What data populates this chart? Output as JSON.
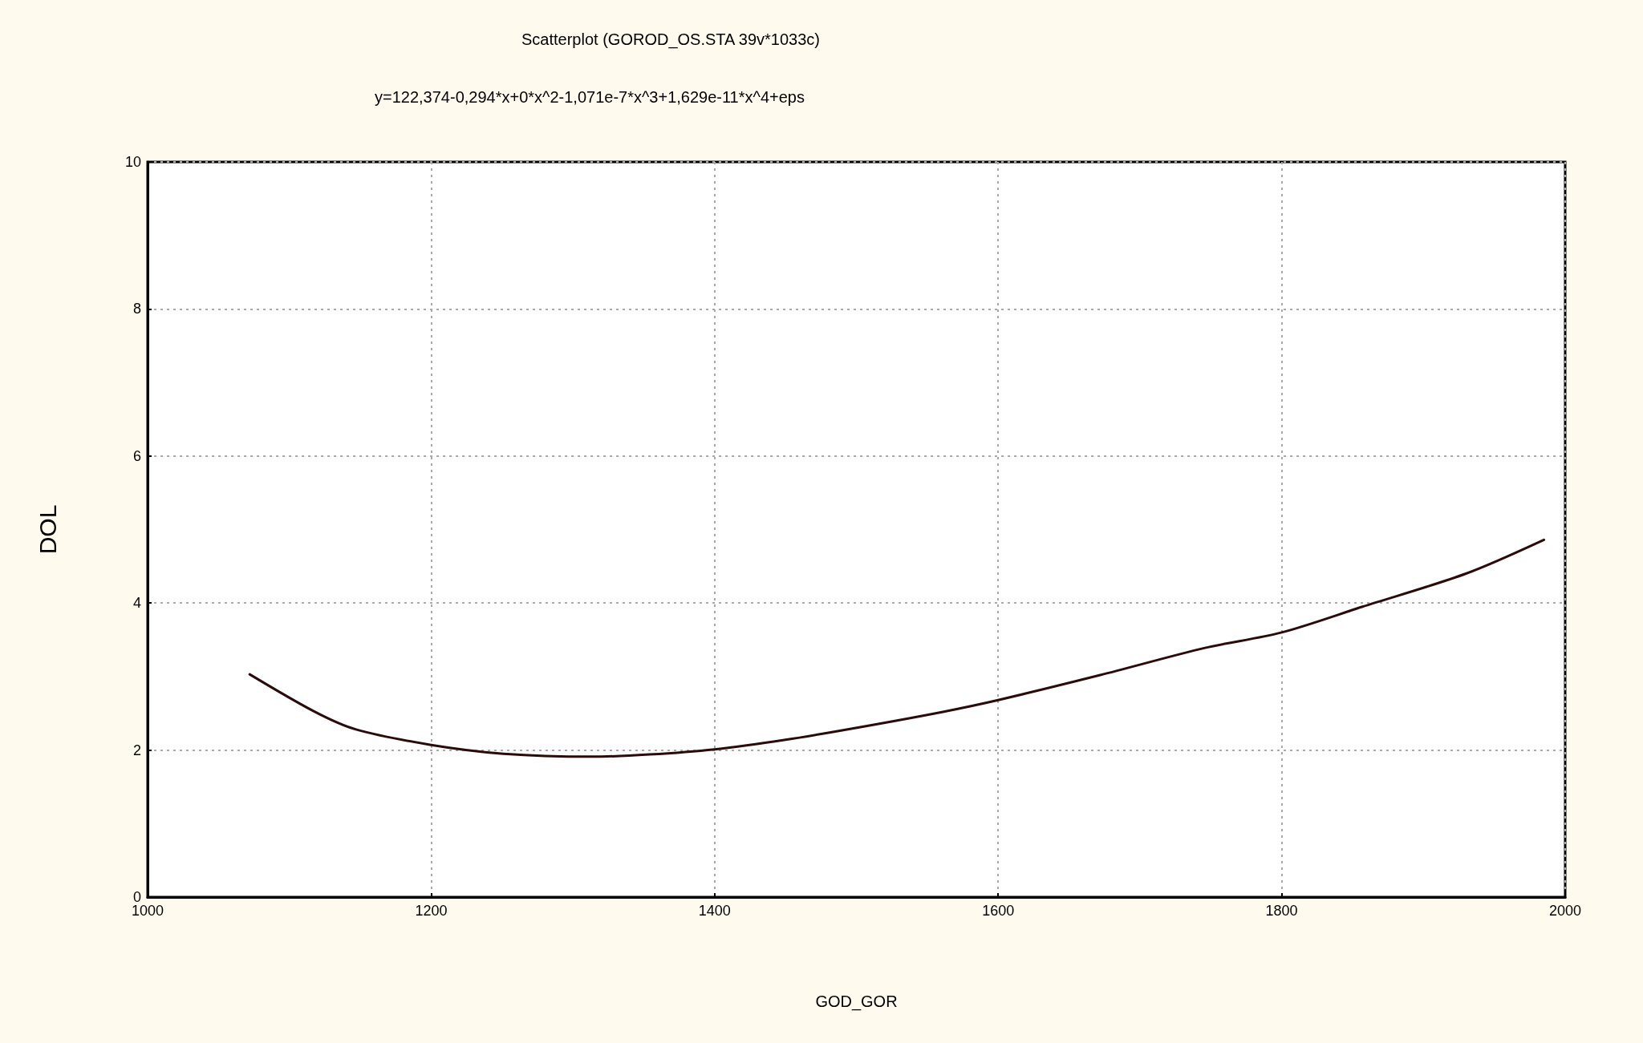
{
  "chart_data": {
    "type": "line",
    "title": "Scatterplot (GOROD_OS.STA 39v*1033c)",
    "subtitle": "y=122,374-0,294*x+0*x^2-1,071e-7*x^3+1,629e-11*x^4+eps",
    "xlabel": "GOD_GOR",
    "ylabel": "DOL",
    "x": [
      1072,
      1118,
      1147,
      1200,
      1251,
      1313,
      1354,
      1400,
      1450,
      1502,
      1561,
      1600,
      1672,
      1746,
      1800,
      1857,
      1930,
      1985
    ],
    "series": [
      {
        "color": "#2b0a0a",
        "values": [
          3.03,
          2.52,
          2.28,
          2.07,
          1.95,
          1.91,
          1.94,
          2.01,
          2.14,
          2.31,
          2.52,
          2.68,
          3.02,
          3.39,
          3.6,
          3.95,
          4.4,
          4.86
        ]
      }
    ],
    "xlim": [
      1000,
      2000
    ],
    "xticks": [
      1000,
      1200,
      1400,
      1600,
      1800,
      2000
    ],
    "ylim": [
      0,
      10
    ],
    "yticks": [
      0,
      2,
      4,
      6,
      8,
      10
    ],
    "grid": true,
    "marker": "none",
    "line_style": "solid"
  }
}
